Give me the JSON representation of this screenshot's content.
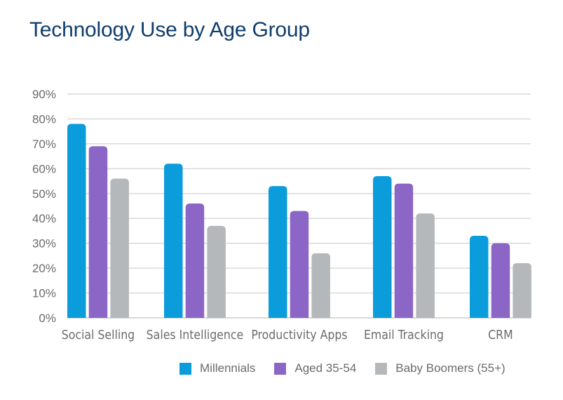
{
  "chart_data": {
    "type": "bar",
    "title": "Technology Use by Age Group",
    "xlabel": "",
    "ylabel": "",
    "categories": [
      "Social Selling",
      "Sales Intelligence",
      "Productivity Apps",
      "Email Tracking",
      "CRM"
    ],
    "series": [
      {
        "name": "Millennials",
        "color": "#0b9ddb",
        "values": [
          78,
          62,
          53,
          57,
          33
        ]
      },
      {
        "name": "Aged 35-54",
        "color": "#8b66c6",
        "values": [
          69,
          46,
          43,
          54,
          30
        ]
      },
      {
        "name": "Baby Boomers (55+)",
        "color": "#b5b8ba",
        "values": [
          56,
          37,
          26,
          42,
          22
        ]
      }
    ],
    "ylim": [
      0,
      90
    ],
    "yticks": [
      0,
      10,
      20,
      30,
      40,
      50,
      60,
      70,
      80,
      90
    ],
    "ytick_labels": [
      "0%",
      "10%",
      "20%",
      "30%",
      "40%",
      "50%",
      "60%",
      "70%",
      "80%",
      "90%"
    ],
    "grid": true,
    "legend_position": "bottom-right"
  },
  "colors": {
    "title": "#0e3d6c",
    "grid": "#d9d9d9",
    "text": "#6b6b6b"
  }
}
